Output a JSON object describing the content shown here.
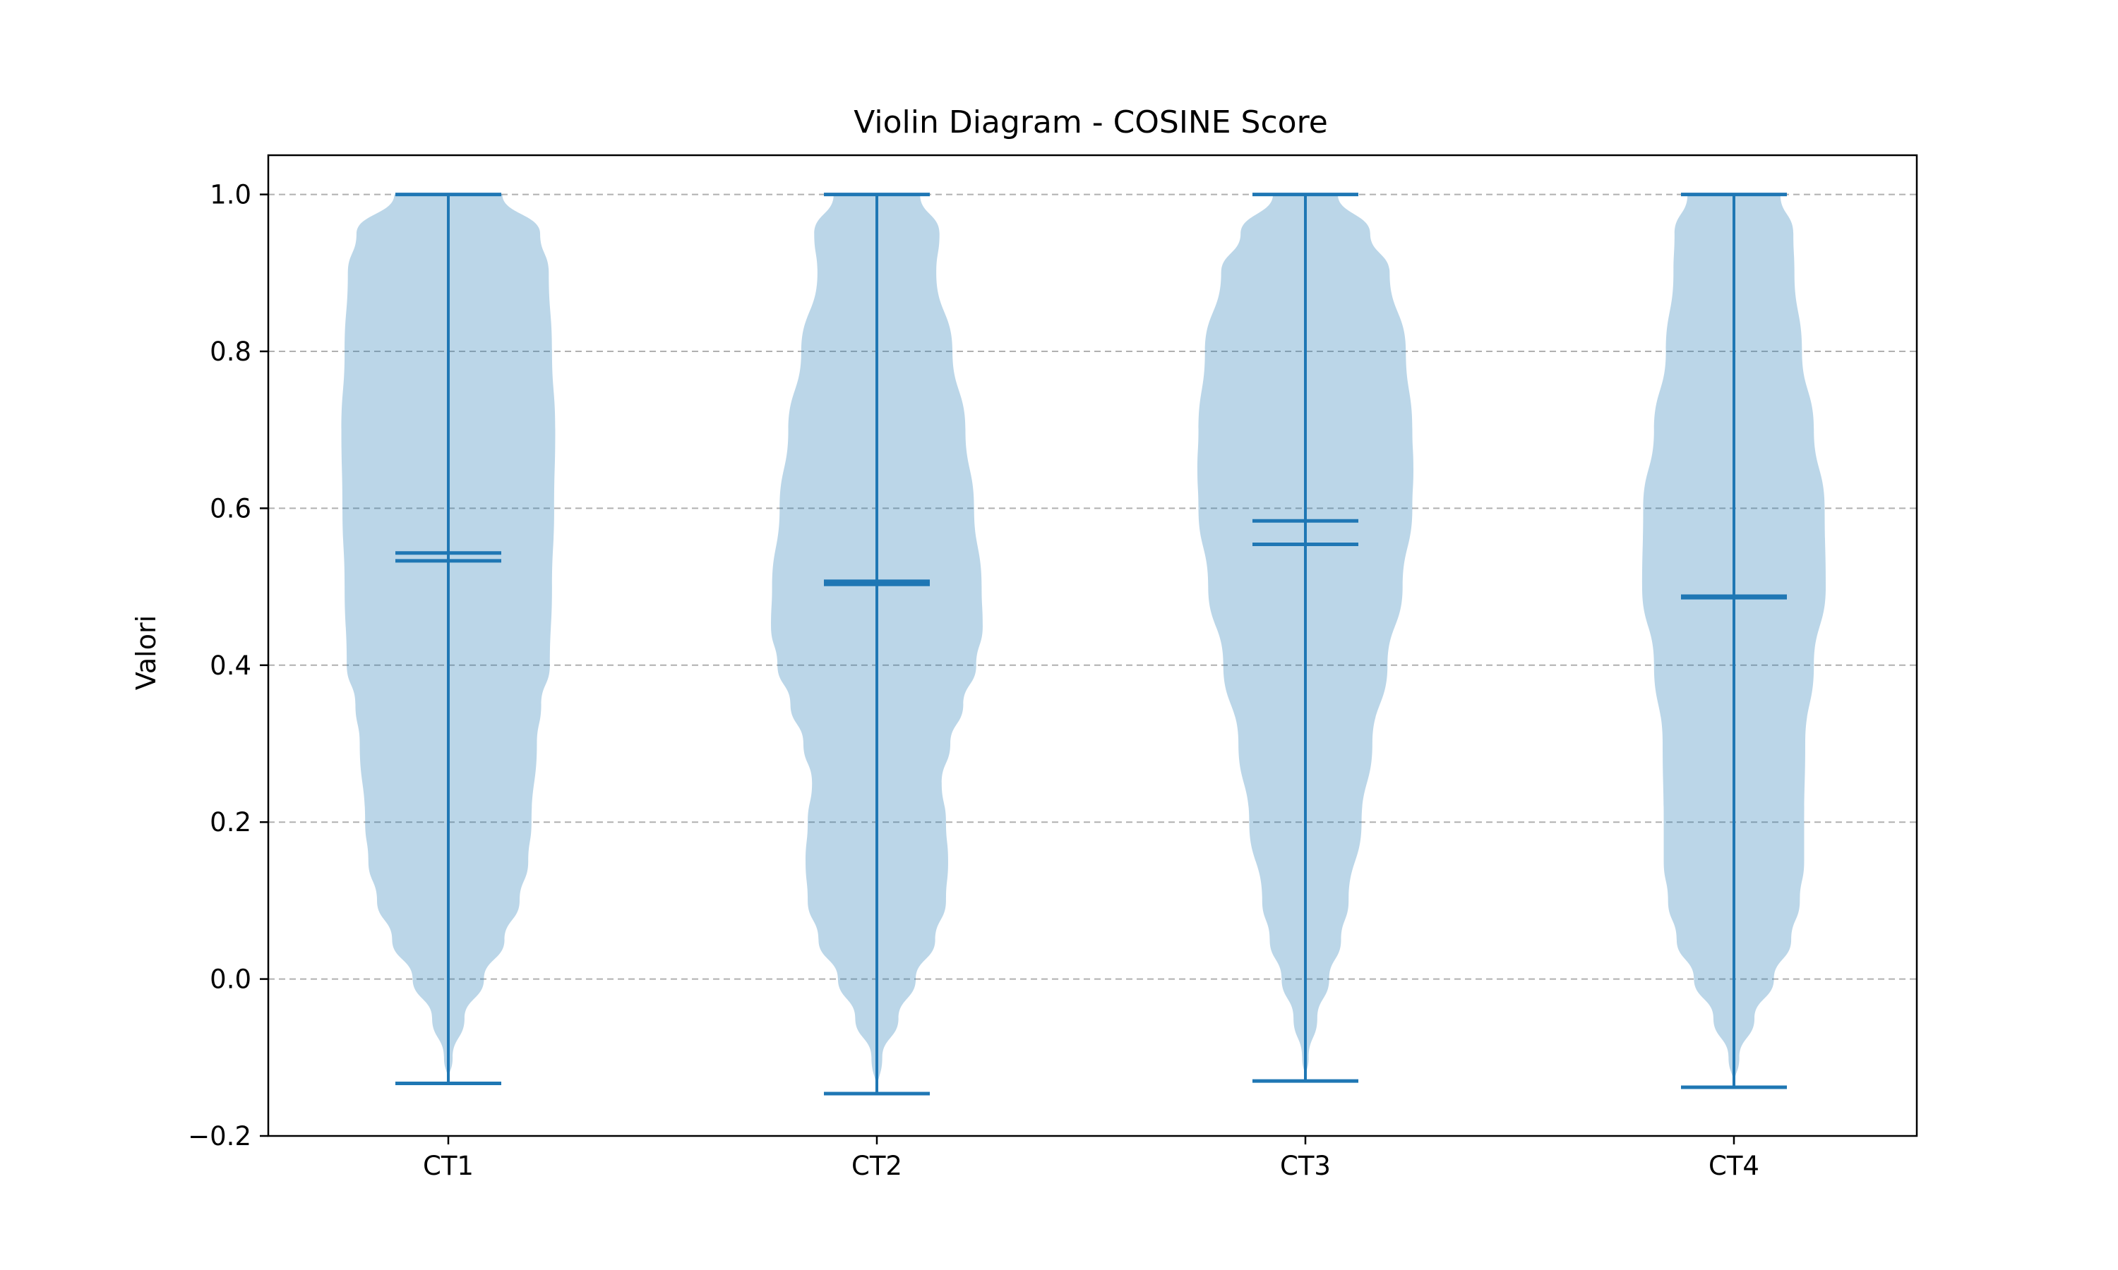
{
  "chart_data": {
    "type": "violin",
    "title": "Violin Diagram - COSINE Score",
    "xlabel": "",
    "ylabel": "Valori",
    "ylim": [
      -0.2,
      1.05
    ],
    "yticks": [
      -0.2,
      0.0,
      0.2,
      0.4,
      0.6,
      0.8,
      1.0
    ],
    "ytick_labels": [
      "−0.2",
      "0.0",
      "0.2",
      "0.4",
      "0.6",
      "0.8",
      "1.0"
    ],
    "grid": "y, dashed",
    "categories": [
      "CT1",
      "CT2",
      "CT3",
      "CT4"
    ],
    "series": [
      {
        "category": "CT1",
        "min": -0.133,
        "max": 1.0,
        "mean": 0.543,
        "median": 0.533,
        "density": [
          [
            -0.133,
            0.0
          ],
          [
            -0.1,
            0.04
          ],
          [
            -0.05,
            0.15
          ],
          [
            0.0,
            0.33
          ],
          [
            0.05,
            0.52
          ],
          [
            0.1,
            0.66
          ],
          [
            0.15,
            0.74
          ],
          [
            0.2,
            0.77
          ],
          [
            0.3,
            0.82
          ],
          [
            0.35,
            0.86
          ],
          [
            0.4,
            0.94
          ],
          [
            0.5,
            0.96
          ],
          [
            0.6,
            0.98
          ],
          [
            0.7,
            0.99
          ],
          [
            0.8,
            0.96
          ],
          [
            0.9,
            0.93
          ],
          [
            0.95,
            0.85
          ],
          [
            1.0,
            0.5
          ]
        ],
        "color": "#1f77b4"
      },
      {
        "category": "CT2",
        "min": -0.146,
        "max": 1.0,
        "mean": 0.507,
        "median": 0.503,
        "density": [
          [
            -0.146,
            0.0
          ],
          [
            -0.1,
            0.05
          ],
          [
            -0.05,
            0.2
          ],
          [
            0.0,
            0.36
          ],
          [
            0.05,
            0.54
          ],
          [
            0.1,
            0.64
          ],
          [
            0.15,
            0.66
          ],
          [
            0.2,
            0.64
          ],
          [
            0.25,
            0.6
          ],
          [
            0.3,
            0.68
          ],
          [
            0.35,
            0.8
          ],
          [
            0.4,
            0.92
          ],
          [
            0.45,
            0.98
          ],
          [
            0.5,
            0.97
          ],
          [
            0.6,
            0.9
          ],
          [
            0.7,
            0.82
          ],
          [
            0.8,
            0.7
          ],
          [
            0.9,
            0.55
          ],
          [
            0.95,
            0.58
          ],
          [
            1.0,
            0.4
          ]
        ],
        "color": "#1f77b4"
      },
      {
        "category": "CT3",
        "min": -0.13,
        "max": 1.0,
        "mean": 0.584,
        "median": 0.554,
        "density": [
          [
            -0.13,
            0.0
          ],
          [
            -0.1,
            0.03
          ],
          [
            -0.05,
            0.11
          ],
          [
            0.0,
            0.22
          ],
          [
            0.05,
            0.33
          ],
          [
            0.1,
            0.4
          ],
          [
            0.2,
            0.52
          ],
          [
            0.3,
            0.62
          ],
          [
            0.4,
            0.76
          ],
          [
            0.5,
            0.9
          ],
          [
            0.6,
            0.99
          ],
          [
            0.65,
            1.0
          ],
          [
            0.7,
            0.99
          ],
          [
            0.8,
            0.93
          ],
          [
            0.9,
            0.78
          ],
          [
            0.95,
            0.6
          ],
          [
            1.0,
            0.3
          ]
        ],
        "color": "#1f77b4"
      },
      {
        "category": "CT4",
        "min": -0.138,
        "max": 1.0,
        "mean": 0.488,
        "median": 0.486,
        "density": [
          [
            -0.138,
            0.0
          ],
          [
            -0.1,
            0.05
          ],
          [
            -0.05,
            0.19
          ],
          [
            0.0,
            0.37
          ],
          [
            0.05,
            0.53
          ],
          [
            0.1,
            0.61
          ],
          [
            0.15,
            0.65
          ],
          [
            0.2,
            0.65
          ],
          [
            0.3,
            0.66
          ],
          [
            0.4,
            0.74
          ],
          [
            0.5,
            0.85
          ],
          [
            0.6,
            0.84
          ],
          [
            0.7,
            0.74
          ],
          [
            0.8,
            0.63
          ],
          [
            0.9,
            0.56
          ],
          [
            0.95,
            0.55
          ],
          [
            1.0,
            0.43
          ]
        ],
        "color": "#1f77b4"
      }
    ]
  }
}
